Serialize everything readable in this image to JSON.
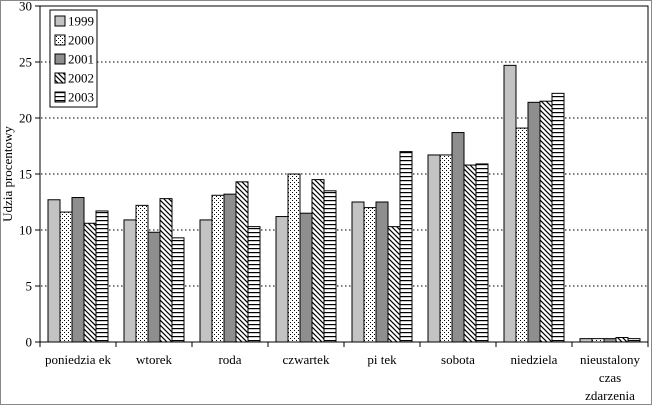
{
  "figure": {
    "border_color": "#888888",
    "background": "#ffffff"
  },
  "chart_data": {
    "type": "bar",
    "title": "",
    "xlabel": "",
    "ylabel": "Udzia procentowy",
    "ylim": [
      0,
      30
    ],
    "ytick_step": 5,
    "yticks": [
      0,
      5,
      10,
      15,
      20,
      25,
      30
    ],
    "grid": "dotted horizontal lines at every 5 units",
    "legend_position": "top-left inside plot, vertical box",
    "categories": [
      "poniedzia ek",
      "wtorek",
      "roda",
      "czwartek",
      "pi tek",
      "sobota",
      "niedziela",
      "nieustalony\nczas\nzdarzenia"
    ],
    "series": [
      {
        "name": "1999",
        "pattern": "solid",
        "color": "#c3c3c3",
        "values": [
          12.7,
          10.9,
          10.9,
          11.2,
          12.5,
          16.7,
          24.7,
          0.3
        ]
      },
      {
        "name": "2000",
        "pattern": "dots",
        "color": "#000000",
        "values": [
          11.6,
          12.2,
          13.1,
          15.0,
          12.0,
          16.7,
          19.1,
          0.3
        ]
      },
      {
        "name": "2001",
        "pattern": "solid",
        "color": "#8e8e8e",
        "values": [
          12.9,
          9.8,
          13.2,
          11.5,
          12.5,
          18.7,
          21.4,
          0.3
        ]
      },
      {
        "name": "2002",
        "pattern": "diagonal",
        "color": "#000000",
        "values": [
          10.6,
          12.8,
          14.3,
          14.5,
          10.3,
          15.8,
          21.5,
          0.4
        ]
      },
      {
        "name": "2003",
        "pattern": "hlines",
        "color": "#000000",
        "values": [
          11.7,
          9.3,
          10.3,
          13.5,
          17.0,
          15.9,
          22.2,
          0.3
        ]
      }
    ]
  }
}
